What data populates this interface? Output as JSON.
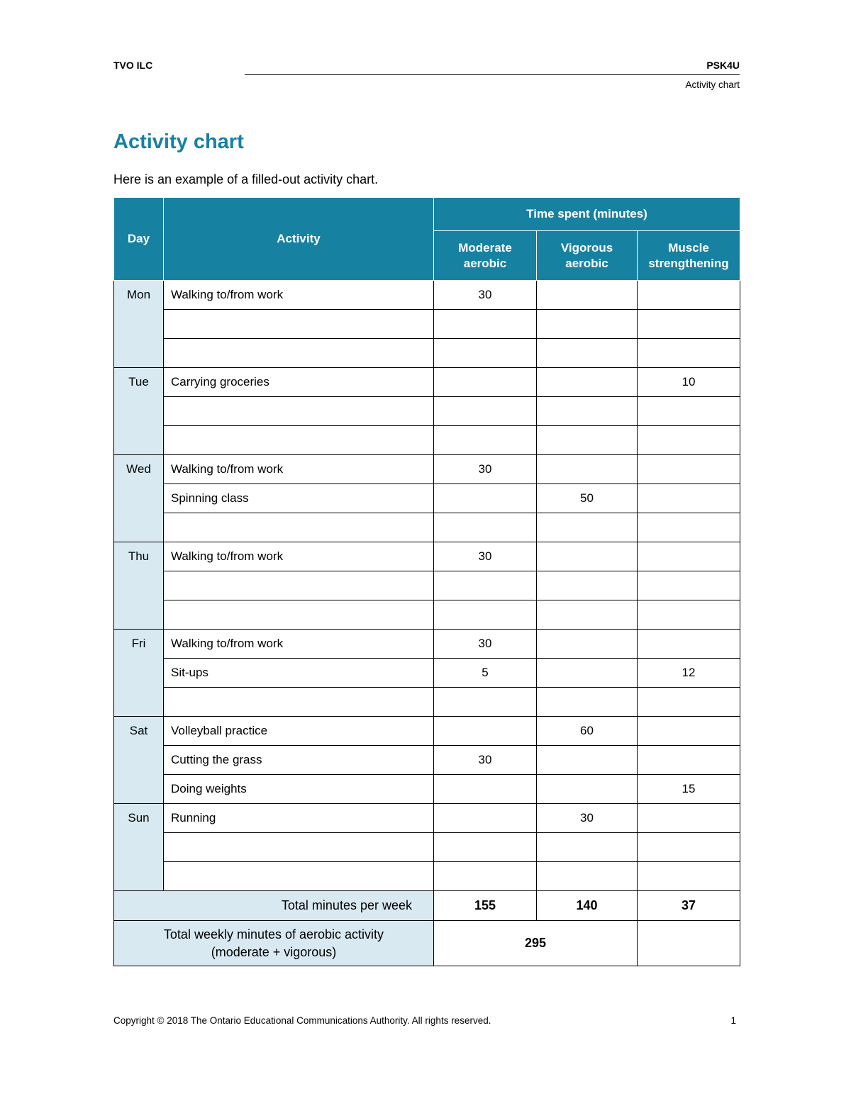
{
  "page_header": {
    "left": "TVO ILC",
    "right": "PSK4U",
    "subtitle": "Activity chart"
  },
  "content": {
    "title": "Activity chart",
    "intro": "Here is an example of a filled-out activity chart."
  },
  "table": {
    "columns": {
      "day": "Day",
      "activity": "Activity",
      "time_spent_group": "Time spent (minutes)",
      "moderate": "Moderate aerobic",
      "vigorous": "Vigorous aerobic",
      "muscle": "Muscle strengthening"
    },
    "days": [
      {
        "day": "Mon",
        "rows": [
          {
            "activity": "Walking to/from work",
            "moderate": "30",
            "vigorous": "",
            "muscle": ""
          },
          {
            "activity": "",
            "moderate": "",
            "vigorous": "",
            "muscle": ""
          },
          {
            "activity": "",
            "moderate": "",
            "vigorous": "",
            "muscle": ""
          }
        ]
      },
      {
        "day": "Tue",
        "rows": [
          {
            "activity": "Carrying groceries",
            "moderate": "",
            "vigorous": "",
            "muscle": "10"
          },
          {
            "activity": "",
            "moderate": "",
            "vigorous": "",
            "muscle": ""
          },
          {
            "activity": "",
            "moderate": "",
            "vigorous": "",
            "muscle": ""
          }
        ]
      },
      {
        "day": "Wed",
        "rows": [
          {
            "activity": "Walking to/from work",
            "moderate": "30",
            "vigorous": "",
            "muscle": ""
          },
          {
            "activity": "Spinning class",
            "moderate": "",
            "vigorous": "50",
            "muscle": ""
          },
          {
            "activity": "",
            "moderate": "",
            "vigorous": "",
            "muscle": ""
          }
        ]
      },
      {
        "day": "Thu",
        "rows": [
          {
            "activity": "Walking to/from work",
            "moderate": "30",
            "vigorous": "",
            "muscle": ""
          },
          {
            "activity": "",
            "moderate": "",
            "vigorous": "",
            "muscle": ""
          },
          {
            "activity": "",
            "moderate": "",
            "vigorous": "",
            "muscle": ""
          }
        ]
      },
      {
        "day": "Fri",
        "rows": [
          {
            "activity": "Walking to/from work",
            "moderate": "30",
            "vigorous": "",
            "muscle": ""
          },
          {
            "activity": "Sit-ups",
            "moderate": "5",
            "vigorous": "",
            "muscle": "12"
          },
          {
            "activity": "",
            "moderate": "",
            "vigorous": "",
            "muscle": ""
          }
        ]
      },
      {
        "day": "Sat",
        "rows": [
          {
            "activity": "Volleyball practice",
            "moderate": "",
            "vigorous": "60",
            "muscle": ""
          },
          {
            "activity": "Cutting the grass",
            "moderate": "30",
            "vigorous": "",
            "muscle": ""
          },
          {
            "activity": "Doing weights",
            "moderate": "",
            "vigorous": "",
            "muscle": "15"
          }
        ]
      },
      {
        "day": "Sun",
        "rows": [
          {
            "activity": "Running",
            "moderate": "",
            "vigorous": "30",
            "muscle": ""
          },
          {
            "activity": "",
            "moderate": "",
            "vigorous": "",
            "muscle": ""
          },
          {
            "activity": "",
            "moderate": "",
            "vigorous": "",
            "muscle": ""
          }
        ]
      }
    ],
    "totals": {
      "per_week_label": "Total minutes per week",
      "moderate": "155",
      "vigorous": "140",
      "muscle": "37",
      "weekly_label_line1": "Total weekly minutes of aerobic activity",
      "weekly_label_line2": "(moderate + vigorous)",
      "weekly_total": "295"
    }
  },
  "page_footer": {
    "copyright": "Copyright © 2018 The Ontario Educational Communications Authority. All rights reserved.",
    "page_number": "1"
  },
  "colors": {
    "accent_teal": "#1781a2",
    "header_bg": "#1781a2",
    "day_bg": "#d9e9f1"
  }
}
